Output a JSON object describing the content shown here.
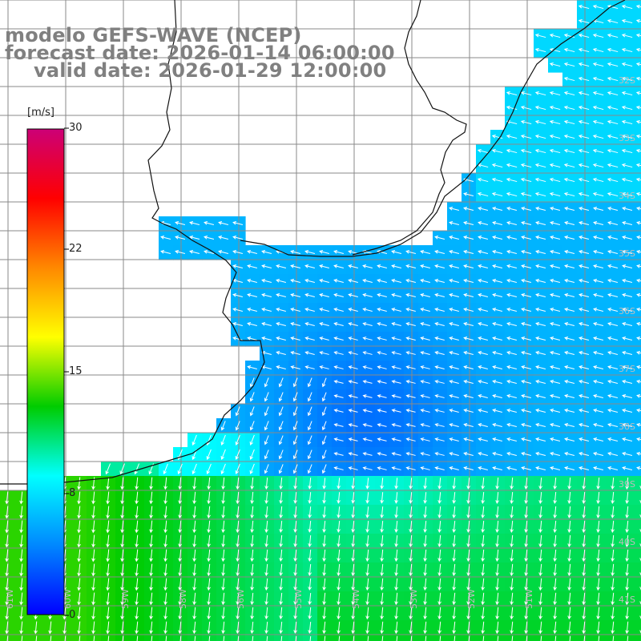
{
  "title": {
    "line1": "modelo GEFS-WAVE (NCEP)",
    "line2": "forecast date: 2026-01-14 06:00:00",
    "line3": "valid date: 2026-01-29 12:00:00"
  },
  "colorbar": {
    "unit": "[m/s]",
    "ticks": [
      "30",
      "22",
      "15",
      "8",
      "0"
    ],
    "values": [
      30,
      22,
      15,
      8,
      0
    ],
    "colors": [
      "#cc0077",
      "#ff0000",
      "#ff8800",
      "#ffff00",
      "#00cc00",
      "#00ffff",
      "#0088ff",
      "#0000ff"
    ]
  },
  "map": {
    "variable": "wind speed and direction",
    "lon_labels": [
      "61W",
      "60W",
      "59W",
      "58W",
      "56W",
      "55W",
      "54W",
      "53W",
      "52W",
      "51W"
    ],
    "lat_labels": [
      "32S",
      "33S",
      "34S",
      "35S",
      "36S",
      "37S",
      "38S",
      "39S",
      "40S",
      "41S"
    ],
    "land_color": "#ffffff",
    "grid_color": "#8a8a8a",
    "arrow_color": "#ffffff"
  }
}
